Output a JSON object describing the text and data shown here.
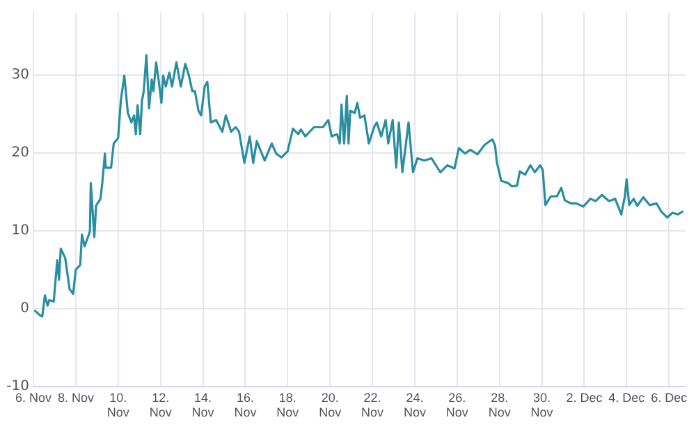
{
  "chart_data": {
    "type": "line",
    "x": [
      "--11-06T01:00",
      "--11-06T08:00",
      "--11-06T10:00",
      "--11-06T13:00",
      "--11-06T16:00",
      "--11-06T18:00",
      "--11-06T23:00",
      "--11-07T03:00",
      "--11-07T05:00",
      "--11-07T07:00",
      "--11-07T12:00",
      "--11-07T17:00",
      "--11-07T21:00",
      "--11-08T00:00",
      "--11-08T05:00",
      "--11-08T07:00",
      "--11-08T10:00",
      "--11-08T16:00",
      "--11-08T17:00",
      "--11-08T21:00",
      "--11-08T23:00",
      "--11-09T04:00",
      "--11-09T06:00",
      "--11-09T09:00",
      "--11-09T10:00",
      "--11-09T16:00",
      "--11-09T19:00",
      "--11-10T00:00",
      "--11-10T03:00",
      "--11-10T07:00",
      "--11-10T11:00",
      "--11-10T15:00",
      "--11-10T18:00",
      "--11-10T20:00",
      "--11-10T22:00",
      "--11-11T01:00",
      "--11-11T03:00",
      "--11-11T05:00",
      "--11-11T08:00",
      "--11-11T11:00",
      "--11-11T14:00",
      "--11-11T16:00",
      "--11-11T19:00",
      "--11-11T22:00",
      "--11-12T01:00",
      "--11-12T03:00",
      "--11-12T06:00",
      "--11-12T10:00",
      "--11-12T13:00",
      "--11-12T18:00",
      "--11-12T23:00",
      "--11-13T04:00",
      "--11-13T08:00",
      "--11-13T12:00",
      "--11-13T15:00",
      "--11-13T19:00",
      "--11-13T22:00",
      "--11-14T02:00",
      "--11-14T05:00",
      "--11-14T09:00",
      "--11-14T15:00",
      "--11-14T22:00",
      "--11-15T02:00",
      "--11-15T08:00",
      "--11-15T13:00",
      "--11-15T17:00",
      "--11-15T23:00",
      "--11-16T05:00",
      "--11-16T09:00",
      "--11-16T13:00",
      "--11-16T22:00",
      "--11-17T06:00",
      "--11-17T11:00",
      "--11-17T17:00",
      "--11-18T00:00",
      "--11-18T06:00",
      "--11-18T12:00",
      "--11-18T15:00",
      "--11-18T20:00",
      "--11-19T06:00",
      "--11-19T16:00",
      "--11-19T22:00",
      "--11-20T02:00",
      "--11-20T08:00",
      "--11-20T11:00",
      "--11-20T13:00",
      "--11-20T16:00",
      "--11-20T19:00",
      "--11-20T21:00",
      "--11-20T23:00",
      "--11-21T04:00",
      "--11-21T07:00",
      "--11-21T10:00",
      "--11-21T15:00",
      "--11-21T20:00",
      "--11-22T02:00",
      "--11-22T05:00",
      "--11-22T10:00",
      "--11-22T15:00",
      "--11-22T18:00",
      "--11-22T23:00",
      "--11-23T03:00",
      "--11-23T06:00",
      "--11-23T10:00",
      "--11-23T17:00",
      "--11-23T22:00",
      "--11-24T03:00",
      "--11-24T11:00",
      "--11-24T19:00",
      "--11-25T05:00",
      "--11-25T13:00",
      "--11-25T21:00",
      "--11-26T02:00",
      "--11-26T09:00",
      "--11-26T15:00",
      "--11-26T23:00",
      "--11-27T07:00",
      "--11-27T13:00",
      "--11-27T16:00",
      "--11-27T19:00",
      "--11-27T21:00",
      "--11-28T02:00",
      "--11-28T10:00",
      "--11-28T14:00",
      "--11-28T20:00",
      "--11-28T23:00",
      "--11-29T05:00",
      "--11-29T11:00",
      "--11-29T16:00",
      "--11-29T22:00",
      "--11-30T01:00",
      "--11-30T04:00",
      "--11-30T10:00",
      "--11-30T17:00",
      "--11-30T22:00",
      "--12-01T02:00",
      "--12-01T09:00",
      "--12-01T15:00",
      "--12-01T23:00",
      "--12-02T07:00",
      "--12-02T13:00",
      "--12-02T20:00",
      "--12-03T04:00",
      "--12-03T11:00",
      "--12-03T18:00",
      "--12-03T22:00",
      "--12-04T00:00",
      "--12-04T03:00",
      "--12-04T08:00",
      "--12-04T12:00",
      "--12-04T19:00",
      "--12-05T02:00",
      "--12-05T10:00",
      "--12-05T15:00",
      "--12-05T22:00",
      "--12-06T04:00",
      "--12-06T10:00",
      "--12-06T16:00"
    ],
    "series": [
      {
        "color": "#2a8ea0",
        "values": [
          -0.2,
          -0.9,
          -1.0,
          1.7,
          0.4,
          1.1,
          0.9,
          6.2,
          3.7,
          7.7,
          6.5,
          2.5,
          1.9,
          5.0,
          5.6,
          9.5,
          8.0,
          9.9,
          16.1,
          9.2,
          13.2,
          14.1,
          16.1,
          19.9,
          18.1,
          18.1,
          21.2,
          21.9,
          26.7,
          29.9,
          25.1,
          23.9,
          24.8,
          22.4,
          26.1,
          22.4,
          26.7,
          27.9,
          32.5,
          25.7,
          29.4,
          27.9,
          31.6,
          29.2,
          26.4,
          29.9,
          28.5,
          30.3,
          28.5,
          31.6,
          28.5,
          31.4,
          30.0,
          27.9,
          27.9,
          25.4,
          24.8,
          28.5,
          29.1,
          23.9,
          24.2,
          22.7,
          24.8,
          22.7,
          23.3,
          22.7,
          18.7,
          22.1,
          18.7,
          21.5,
          19.0,
          21.2,
          19.9,
          19.4,
          20.2,
          23.1,
          22.4,
          23.0,
          22.1,
          23.3,
          23.3,
          24.2,
          22.1,
          22.4,
          21.2,
          26.2,
          21.2,
          27.3,
          21.2,
          25.4,
          25.1,
          26.4,
          24.5,
          24.8,
          21.2,
          23.3,
          23.9,
          22.1,
          24.2,
          21.2,
          24.2,
          18.1,
          23.9,
          17.5,
          23.9,
          17.5,
          19.3,
          19.0,
          19.3,
          17.5,
          18.4,
          18.0,
          20.6,
          19.9,
          20.4,
          19.8,
          21.0,
          21.5,
          21.7,
          20.9,
          18.8,
          16.4,
          16.1,
          15.7,
          15.8,
          17.6,
          17.2,
          18.4,
          17.5,
          18.4,
          17.8,
          13.3,
          14.4,
          14.4,
          15.5,
          13.9,
          13.5,
          13.5,
          13.1,
          14.1,
          13.8,
          14.6,
          13.8,
          14.1,
          12.1,
          14.4,
          16.6,
          13.3,
          14.1,
          13.2,
          14.3,
          13.3,
          13.5,
          12.5,
          11.7,
          12.3,
          12.1,
          12.5
        ]
      }
    ],
    "xlim": [
      "--11-06",
      "--12-06T18:00"
    ],
    "xticks": [
      {
        "value": "--11-06",
        "label": "6. Nov"
      },
      {
        "value": "--11-08",
        "label": "8. Nov"
      },
      {
        "value": "--11-10",
        "label": "10. Nov"
      },
      {
        "value": "--11-12",
        "label": "12. Nov"
      },
      {
        "value": "--11-14",
        "label": "14. Nov"
      },
      {
        "value": "--11-16",
        "label": "16. Nov"
      },
      {
        "value": "--11-18",
        "label": "18. Nov"
      },
      {
        "value": "--11-20",
        "label": "20. Nov"
      },
      {
        "value": "--11-22",
        "label": "22. Nov"
      },
      {
        "value": "--11-24",
        "label": "24. Nov"
      },
      {
        "value": "--11-26",
        "label": "26. Nov"
      },
      {
        "value": "--11-28",
        "label": "28. Nov"
      },
      {
        "value": "--11-30",
        "label": "30. Nov"
      },
      {
        "value": "--12-02",
        "label": "2. Dec"
      },
      {
        "value": "--12-04",
        "label": "4. Dec"
      },
      {
        "value": "--12-06",
        "label": "6. Dec"
      }
    ],
    "ylim": [
      -10,
      38
    ],
    "yticks": [
      -10,
      0,
      10,
      20,
      30
    ],
    "grid": true,
    "legend": false,
    "marker": "none",
    "line_style": "solid"
  }
}
